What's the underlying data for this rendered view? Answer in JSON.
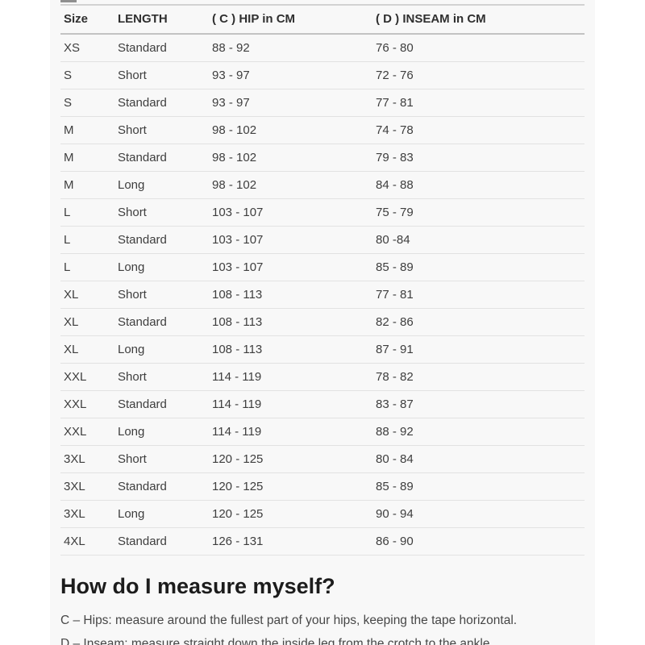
{
  "colors": {
    "content_background": "#f8f8f8",
    "page_background": "#ffffff",
    "header_text": "#2f2f2f",
    "body_text": "#3e3e3e",
    "row_border": "#e2e2e2",
    "header_border": "#c3c3c3"
  },
  "size_chart": {
    "columns": [
      "Size",
      "LENGTH",
      "( C ) HIP in CM",
      "( D ) INSEAM in CM"
    ],
    "rows": [
      {
        "size": "XS",
        "length": "Standard",
        "hip": "88 - 92",
        "inseam": "76 - 80"
      },
      {
        "size": "S",
        "length": "Short",
        "hip": "93 - 97",
        "inseam": "72 - 76"
      },
      {
        "size": "S",
        "length": "Standard",
        "hip": "93 - 97",
        "inseam": "77 - 81"
      },
      {
        "size": "M",
        "length": "Short",
        "hip": "98 - 102",
        "inseam": "74 - 78"
      },
      {
        "size": "M",
        "length": "Standard",
        "hip": "98 - 102",
        "inseam": "79 - 83"
      },
      {
        "size": "M",
        "length": "Long",
        "hip": "98 - 102",
        "inseam": "84 - 88"
      },
      {
        "size": "L",
        "length": "Short",
        "hip": "103 - 107",
        "inseam": "75 - 79"
      },
      {
        "size": "L",
        "length": "Standard",
        "hip": "103 - 107",
        "inseam": "80 -84"
      },
      {
        "size": "L",
        "length": "Long",
        "hip": "103 - 107",
        "inseam": "85 - 89"
      },
      {
        "size": "XL",
        "length": "Short",
        "hip": "108 - 113",
        "inseam": "77 - 81"
      },
      {
        "size": "XL",
        "length": "Standard",
        "hip": "108 - 113",
        "inseam": "82 - 86"
      },
      {
        "size": "XL",
        "length": "Long",
        "hip": "108 - 113",
        "inseam": "87 - 91"
      },
      {
        "size": "XXL",
        "length": "Short",
        "hip": "114 - 119",
        "inseam": "78 - 82"
      },
      {
        "size": "XXL",
        "length": "Standard",
        "hip": "114 - 119",
        "inseam": "83 - 87"
      },
      {
        "size": "XXL",
        "length": "Long",
        "hip": "114 - 119",
        "inseam": "88 - 92"
      },
      {
        "size": "3XL",
        "length": "Short",
        "hip": "120 - 125",
        "inseam": "80 - 84"
      },
      {
        "size": "3XL",
        "length": "Standard",
        "hip": "120 - 125",
        "inseam": "85 - 89"
      },
      {
        "size": "3XL",
        "length": "Long",
        "hip": "120 - 125",
        "inseam": "90 - 94"
      },
      {
        "size": "4XL",
        "length": "Standard",
        "hip": "126 - 131",
        "inseam": "86 - 90"
      }
    ]
  },
  "measure_section": {
    "heading": "How do I measure myself?",
    "lines": [
      "C – Hips: measure around the fullest part of your hips, keeping the tape horizontal.",
      "D – Inseam: measure straight down the inside leg from the crotch to the ankle."
    ]
  }
}
